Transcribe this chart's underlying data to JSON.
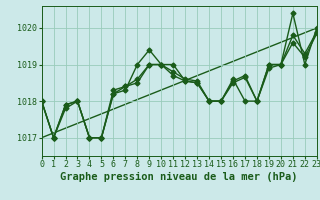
{
  "xlabel": "Graphe pression niveau de la mer (hPa)",
  "xlim": [
    0,
    23
  ],
  "ylim": [
    1016.5,
    1020.6
  ],
  "y_ticks": [
    1017,
    1018,
    1019,
    1020
  ],
  "bg_color": "#cce9e9",
  "grid_color": "#99ccbb",
  "line_color": "#1a5c1a",
  "series": [
    [
      1018.0,
      1017.0,
      1017.8,
      1018.0,
      1017.0,
      1017.0,
      1018.2,
      1018.3,
      1019.0,
      1019.4,
      1019.0,
      1019.0,
      1018.55,
      1018.5,
      1018.0,
      1018.0,
      1018.6,
      1018.0,
      1018.0,
      1019.0,
      1019.0,
      1020.4,
      1019.0,
      1020.0
    ],
    [
      1018.0,
      1017.0,
      1017.9,
      1018.0,
      1017.0,
      1017.0,
      1018.2,
      1018.4,
      1018.5,
      1019.0,
      1019.0,
      1018.8,
      1018.6,
      1018.55,
      1018.0,
      1018.0,
      1018.55,
      1018.7,
      1018.0,
      1018.9,
      1019.0,
      1019.8,
      1019.3,
      1019.9
    ],
    [
      1018.0,
      1017.0,
      1017.9,
      1018.0,
      1017.0,
      1017.0,
      1018.3,
      1018.4,
      1018.6,
      1019.0,
      1019.0,
      1018.7,
      1018.55,
      1018.5,
      1018.0,
      1018.0,
      1018.5,
      1018.65,
      1018.0,
      1019.0,
      1019.0,
      1019.6,
      1019.2,
      1019.85
    ]
  ],
  "trend_line": [
    1017.0,
    1020.0
  ],
  "linewidth": 1.0,
  "markersize": 2.5,
  "xlabel_fontsize": 7.5,
  "tick_fontsize": 6.0
}
